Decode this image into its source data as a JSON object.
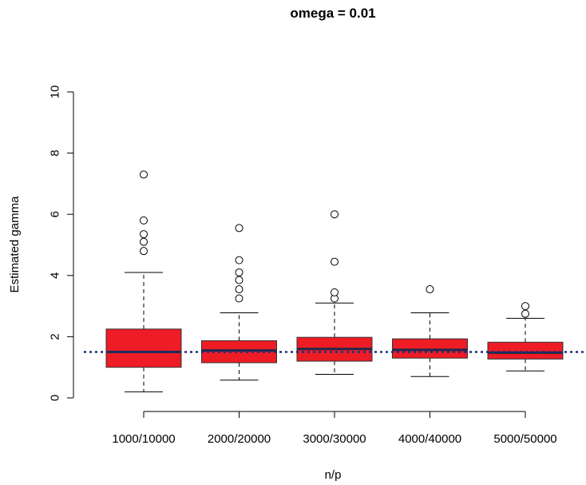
{
  "chart_data": {
    "type": "boxplot",
    "title": "omega = 0.01",
    "xlabel": "n/p",
    "ylabel": "Estimated gamma",
    "ylim": [
      0,
      10
    ],
    "yticks": [
      0,
      2,
      4,
      6,
      8,
      10
    ],
    "categories": [
      "1000/10000",
      "2000/20000",
      "3000/30000",
      "4000/40000",
      "5000/50000"
    ],
    "reference_line": 1.5,
    "box_color": "#ee1c25",
    "median_color": "#1f2a4d",
    "reference_color": "#1a2f80",
    "boxes": [
      {
        "whisker_low": 0.2,
        "q1": 1.0,
        "median": 1.5,
        "q3": 2.25,
        "whisker_high": 4.1,
        "outliers": [
          4.8,
          5.1,
          5.35,
          5.8,
          7.3
        ]
      },
      {
        "whisker_low": 0.58,
        "q1": 1.15,
        "median": 1.55,
        "q3": 1.87,
        "whisker_high": 2.78,
        "outliers": [
          3.25,
          3.55,
          3.85,
          4.1,
          4.5,
          5.55
        ]
      },
      {
        "whisker_low": 0.77,
        "q1": 1.2,
        "median": 1.6,
        "q3": 1.98,
        "whisker_high": 3.1,
        "outliers": [
          3.25,
          3.45,
          4.45,
          6.0
        ]
      },
      {
        "whisker_low": 0.7,
        "q1": 1.3,
        "median": 1.57,
        "q3": 1.93,
        "whisker_high": 2.78,
        "outliers": [
          3.55
        ]
      },
      {
        "whisker_low": 0.88,
        "q1": 1.27,
        "median": 1.48,
        "q3": 1.82,
        "whisker_high": 2.6,
        "outliers": [
          2.75,
          3.0
        ]
      }
    ]
  }
}
